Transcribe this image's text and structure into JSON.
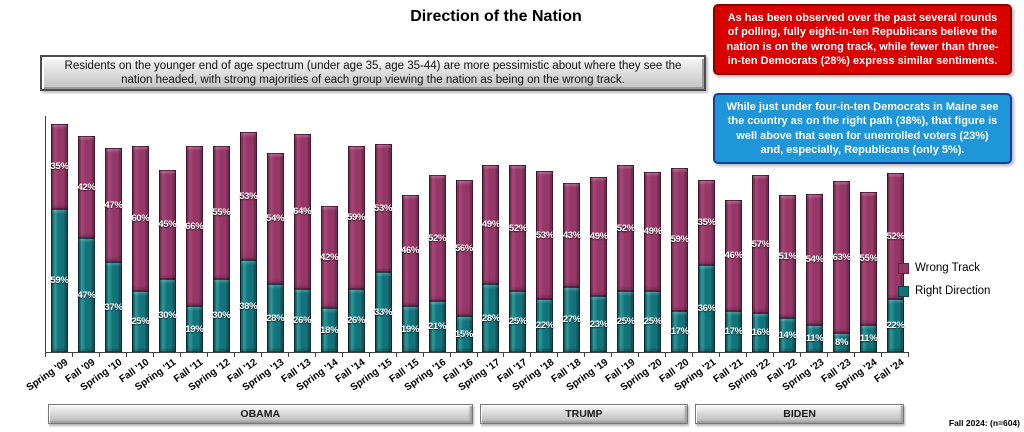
{
  "title": "Direction of the Nation",
  "callouts": {
    "gray": "Residents on the younger end of age spectrum (under age 35, age 35-44) are more pessimistic about where they see the nation headed, with strong majorities of each group viewing the nation as being on the wrong track.",
    "red": "As has been observed over the past several rounds of polling, fully eight-in-ten Republicans believe the nation is on the wrong track, while fewer than three-in-ten Democrats (28%) express similar sentiments.",
    "blue": "While just under four-in-ten Democrats in Maine see the country as on the right path (38%), that figure is well above that seen for unenrolled voters (23%) and, especially, Republicans (only 5%)."
  },
  "footnote": "Fall 2024: (n=604)",
  "legend": {
    "items": [
      {
        "label": "Wrong Track",
        "color": "#953867"
      },
      {
        "label": "Right Direction",
        "color": "#14737a"
      }
    ]
  },
  "chart_data": {
    "type": "bar",
    "stacked": true,
    "title": "Direction of the Nation",
    "value_suffix": "%",
    "ylim": [
      0,
      100
    ],
    "grid": false,
    "legend_position": "right",
    "categories": [
      "Spring '09",
      "Fall '09",
      "Spring '10",
      "Fall '10",
      "Spring '11",
      "Fall '11",
      "Spring '12",
      "Fall '12",
      "Spring '13",
      "Fall '13",
      "Spring '14",
      "Fall '14",
      "Spring '15",
      "Fall '15",
      "Spring '16",
      "Fall '16",
      "Spring '17",
      "Fall '17",
      "Spring '18",
      "Fall '18",
      "Spring '19",
      "Fall '19",
      "Spring '20",
      "Fall '20",
      "Spring '21",
      "Fall '21",
      "Spring '22",
      "Fall '22",
      "Spring '23",
      "Fall '23",
      "Spring '24",
      "Fall '24"
    ],
    "series": [
      {
        "name": "Right Direction",
        "color": "#14737a",
        "values": [
          59,
          47,
          37,
          25,
          30,
          19,
          30,
          38,
          28,
          26,
          18,
          26,
          33,
          19,
          21,
          15,
          28,
          25,
          22,
          27,
          23,
          25,
          25,
          17,
          36,
          17,
          16,
          14,
          11,
          8,
          11,
          22
        ]
      },
      {
        "name": "Wrong Track",
        "color": "#953867",
        "values": [
          35,
          42,
          47,
          60,
          45,
          66,
          55,
          53,
          54,
          64,
          42,
          59,
          53,
          46,
          52,
          56,
          49,
          52,
          53,
          43,
          49,
          52,
          49,
          59,
          35,
          46,
          57,
          51,
          54,
          63,
          55,
          52
        ]
      }
    ],
    "president_bands": [
      {
        "label": "OBAMA",
        "start": 0,
        "end": 15
      },
      {
        "label": "TRUMP",
        "start": 16,
        "end": 23
      },
      {
        "label": "BIDEN",
        "start": 24,
        "end": 31
      }
    ]
  }
}
